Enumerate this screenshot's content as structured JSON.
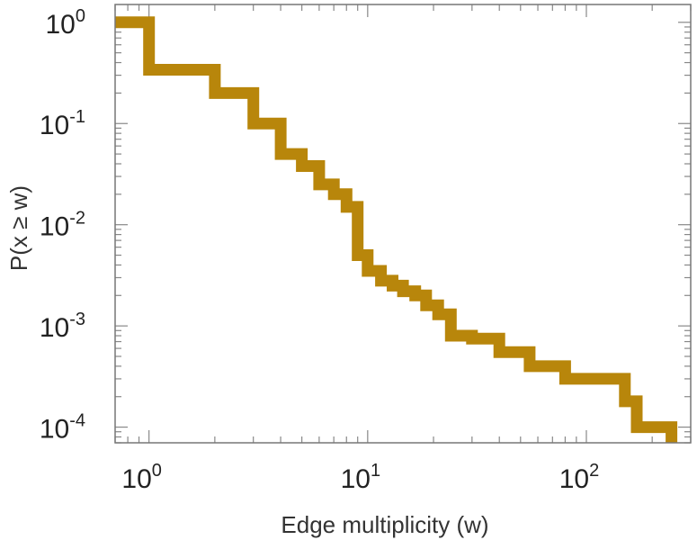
{
  "chart_data": {
    "type": "line",
    "subtype": "ccdf-step",
    "title": "",
    "xlabel": "Edge multiplicity (w)",
    "ylabel": "P(x ≥ w)",
    "xscale": "log",
    "yscale": "log",
    "xlim": [
      0.7,
      300
    ],
    "ylim": [
      7e-05,
      1.5
    ],
    "x_ticks": [
      {
        "value": 1,
        "base": "10",
        "exp": "0"
      },
      {
        "value": 10,
        "base": "10",
        "exp": "1"
      },
      {
        "value": 100,
        "base": "10",
        "exp": "2"
      }
    ],
    "y_ticks": [
      {
        "value": 1,
        "base": "10",
        "exp": "0"
      },
      {
        "value": 0.1,
        "base": "10",
        "exp": "-1"
      },
      {
        "value": 0.01,
        "base": "10",
        "exp": "-2"
      },
      {
        "value": 0.001,
        "base": "10",
        "exp": "-3"
      },
      {
        "value": 0.0001,
        "base": "10",
        "exp": "-4"
      }
    ],
    "grid": false,
    "series": [
      {
        "name": "P(x ≥ w)",
        "color": "#b8860b",
        "points": [
          [
            0.7,
            1.0
          ],
          [
            1.0,
            1.0
          ],
          [
            1.0,
            0.34
          ],
          [
            2.0,
            0.34
          ],
          [
            2.0,
            0.2
          ],
          [
            3.0,
            0.2
          ],
          [
            3.0,
            0.1
          ],
          [
            4.0,
            0.1
          ],
          [
            4.0,
            0.05
          ],
          [
            5.0,
            0.05
          ],
          [
            5.0,
            0.038
          ],
          [
            6.0,
            0.038
          ],
          [
            6.0,
            0.025
          ],
          [
            7.0,
            0.025
          ],
          [
            7.0,
            0.02
          ],
          [
            8.0,
            0.02
          ],
          [
            8.0,
            0.015
          ],
          [
            9.0,
            0.015
          ],
          [
            9.0,
            0.005
          ],
          [
            10.0,
            0.005
          ],
          [
            10.0,
            0.0035
          ],
          [
            11.5,
            0.0035
          ],
          [
            11.5,
            0.0028
          ],
          [
            13.0,
            0.0028
          ],
          [
            13.0,
            0.0025
          ],
          [
            14.5,
            0.0025
          ],
          [
            14.5,
            0.0022
          ],
          [
            16.5,
            0.0022
          ],
          [
            16.5,
            0.002
          ],
          [
            18.5,
            0.002
          ],
          [
            18.5,
            0.0016
          ],
          [
            21.0,
            0.0016
          ],
          [
            21.0,
            0.0013
          ],
          [
            24.0,
            0.0013
          ],
          [
            24.0,
            0.0008
          ],
          [
            30.0,
            0.0008
          ],
          [
            30.0,
            0.00075
          ],
          [
            40.0,
            0.00075
          ],
          [
            40.0,
            0.00055
          ],
          [
            55.0,
            0.00055
          ],
          [
            55.0,
            0.0004
          ],
          [
            80.0,
            0.0004
          ],
          [
            80.0,
            0.0003
          ],
          [
            150.0,
            0.0003
          ],
          [
            150.0,
            0.00018
          ],
          [
            170.0,
            0.00018
          ],
          [
            170.0,
            0.0001
          ],
          [
            245.0,
            0.0001
          ],
          [
            245.0,
            7e-05
          ]
        ]
      }
    ]
  }
}
